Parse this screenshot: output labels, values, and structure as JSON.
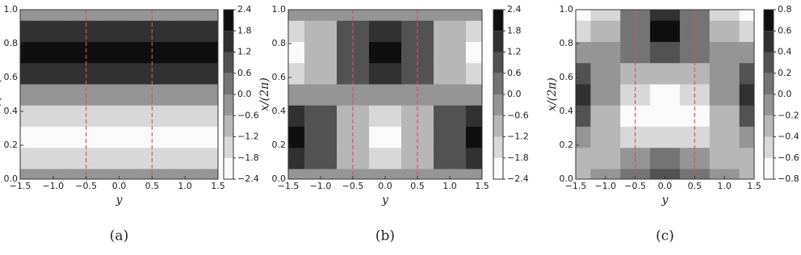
{
  "chart_data": [
    {
      "type": "contour",
      "caption": "(a)",
      "xlabel": "y",
      "ylabel": "x/(2π)",
      "xlim": [
        -1.5,
        1.5
      ],
      "ylim": [
        0,
        1
      ],
      "xticks": [
        {
          "value": -1.5,
          "label": "−1.5"
        },
        {
          "value": -1,
          "label": "−1.0"
        },
        {
          "value": -0.5,
          "label": "−0.5"
        },
        {
          "value": 0,
          "label": "0.0"
        },
        {
          "value": 0.5,
          "label": "0.5"
        },
        {
          "value": 1,
          "label": "1.0"
        },
        {
          "value": 1.5,
          "label": "1.5"
        }
      ],
      "yticks": [
        {
          "value": 0,
          "label": "0.0"
        },
        {
          "value": 0.2,
          "label": "0.2"
        },
        {
          "value": 0.4,
          "label": "0.4"
        },
        {
          "value": 0.6,
          "label": "0.6"
        },
        {
          "value": 0.8,
          "label": "0.8"
        },
        {
          "value": 1,
          "label": "1.0"
        }
      ],
      "levels": [
        {
          "value": -2.4,
          "label": "−2.4"
        },
        {
          "value": -1.8,
          "label": "−1.8"
        },
        {
          "value": -1.2,
          "label": "−1.2"
        },
        {
          "value": -0.6,
          "label": "−0.6"
        },
        {
          "value": 0,
          "label": "0.0"
        },
        {
          "value": 0.6,
          "label": "0.6"
        },
        {
          "value": 1.2,
          "label": "1.2"
        },
        {
          "value": 1.8,
          "label": "1.8"
        },
        {
          "value": 2.4,
          "label": "2.4"
        }
      ],
      "vlines": [
        -0.5,
        0.5
      ],
      "vline_color": "#d9534f",
      "x": [
        -1.5,
        -1,
        -0.5,
        0,
        0.5,
        1,
        1.5
      ],
      "y": [
        0,
        0.125,
        0.25,
        0.375,
        0.5,
        0.625,
        0.75,
        0.875,
        1
      ],
      "z": [
        [
          0,
          0,
          0,
          0,
          0,
          0,
          0
        ],
        [
          -1.4,
          -1.5,
          -1.6,
          -1.7,
          -1.6,
          -1.5,
          -1.4
        ],
        [
          -2.0,
          -2.1,
          -2.25,
          -2.4,
          -2.25,
          -2.1,
          -2.0
        ],
        [
          -1.4,
          -1.5,
          -1.6,
          -1.7,
          -1.6,
          -1.5,
          -1.4
        ],
        [
          0,
          0,
          0,
          0,
          0,
          0,
          0
        ],
        [
          1.4,
          1.5,
          1.6,
          1.7,
          1.6,
          1.5,
          1.4
        ],
        [
          2.0,
          2.1,
          2.25,
          2.4,
          2.25,
          2.1,
          2.0
        ],
        [
          1.4,
          1.5,
          1.6,
          1.7,
          1.6,
          1.5,
          1.4
        ],
        [
          0,
          0,
          0,
          0,
          0,
          0,
          0
        ]
      ]
    },
    {
      "type": "contour",
      "caption": "(b)",
      "xlabel": "y",
      "ylabel": "x/(2π)",
      "xlim": [
        -1.5,
        1.5
      ],
      "ylim": [
        0,
        1
      ],
      "xticks": [
        {
          "value": -1.5,
          "label": "−1.5"
        },
        {
          "value": -1,
          "label": "−1.0"
        },
        {
          "value": -0.5,
          "label": "−0.5"
        },
        {
          "value": 0,
          "label": "0.0"
        },
        {
          "value": 0.5,
          "label": "0.5"
        },
        {
          "value": 1,
          "label": "1.0"
        },
        {
          "value": 1.5,
          "label": "1.5"
        }
      ],
      "yticks": [
        {
          "value": 0,
          "label": "0.0"
        },
        {
          "value": 0.2,
          "label": "0.2"
        },
        {
          "value": 0.4,
          "label": "0.4"
        },
        {
          "value": 0.6,
          "label": "0.6"
        },
        {
          "value": 0.8,
          "label": "0.8"
        },
        {
          "value": 1,
          "label": "1.0"
        }
      ],
      "levels": [
        {
          "value": -2.4,
          "label": "−2.4"
        },
        {
          "value": -1.8,
          "label": "−1.8"
        },
        {
          "value": -1.2,
          "label": "−1.2"
        },
        {
          "value": -0.6,
          "label": "−0.6"
        },
        {
          "value": 0,
          "label": "0.0"
        },
        {
          "value": 0.6,
          "label": "0.6"
        },
        {
          "value": 1.2,
          "label": "1.2"
        },
        {
          "value": 1.8,
          "label": "1.8"
        },
        {
          "value": 2.4,
          "label": "2.4"
        }
      ],
      "vlines": [
        -0.5,
        0.5
      ],
      "vline_color": "#d9534f",
      "x": [
        -1.5,
        -1,
        -0.5,
        0,
        0.5,
        1,
        1.5
      ],
      "y": [
        0,
        0.125,
        0.25,
        0.375,
        0.5,
        0.625,
        0.75,
        0.875,
        1
      ],
      "z": [
        [
          0,
          0,
          0,
          0,
          0,
          0,
          0
        ],
        [
          1.6,
          0.8,
          -0.8,
          -1.6,
          -0.8,
          0.8,
          1.6
        ],
        [
          2.3,
          1.15,
          -1.15,
          -2.3,
          -1.15,
          1.15,
          2.3
        ],
        [
          1.6,
          0.8,
          -0.8,
          -1.6,
          -0.8,
          0.8,
          1.6
        ],
        [
          0,
          0,
          0,
          0,
          0,
          0,
          0
        ],
        [
          -1.6,
          -0.8,
          0.8,
          1.6,
          0.8,
          -0.8,
          -1.6
        ],
        [
          -2.3,
          -1.15,
          1.15,
          2.3,
          1.15,
          -1.15,
          -2.3
        ],
        [
          -1.6,
          -0.8,
          0.8,
          1.6,
          0.8,
          -0.8,
          -1.6
        ],
        [
          0,
          0,
          0,
          0,
          0,
          0,
          0
        ]
      ]
    },
    {
      "type": "contour",
      "caption": "(c)",
      "xlabel": "y",
      "ylabel": "x/(2π)",
      "xlim": [
        -1.5,
        1.5
      ],
      "ylim": [
        0,
        1
      ],
      "xticks": [
        {
          "value": -1.5,
          "label": "−1.5"
        },
        {
          "value": -1,
          "label": "−1.0"
        },
        {
          "value": -0.5,
          "label": "−0.5"
        },
        {
          "value": 0,
          "label": "0.0"
        },
        {
          "value": 0.5,
          "label": "0.5"
        },
        {
          "value": 1,
          "label": "1.0"
        },
        {
          "value": 1.5,
          "label": "1.5"
        }
      ],
      "yticks": [
        {
          "value": 0,
          "label": "0.0"
        },
        {
          "value": 0.2,
          "label": "0.2"
        },
        {
          "value": 0.4,
          "label": "0.4"
        },
        {
          "value": 0.6,
          "label": "0.6"
        },
        {
          "value": 0.8,
          "label": "0.8"
        },
        {
          "value": 1,
          "label": "1.0"
        }
      ],
      "levels": [
        {
          "value": -0.8,
          "label": "−0.8"
        },
        {
          "value": -0.6,
          "label": "−0.6"
        },
        {
          "value": -0.4,
          "label": "−0.4"
        },
        {
          "value": -0.2,
          "label": "−0.2"
        },
        {
          "value": 0,
          "label": "0.0"
        },
        {
          "value": 0.2,
          "label": "0.2"
        },
        {
          "value": 0.4,
          "label": "0.4"
        },
        {
          "value": 0.6,
          "label": "0.6"
        },
        {
          "value": 0.8,
          "label": "0.8"
        }
      ],
      "vlines": [
        -0.5,
        0.5
      ],
      "vline_color": "#d9534f",
      "x": [
        -1.5,
        -1,
        -0.5,
        0,
        0.5,
        1,
        1.5
      ],
      "y": [
        0,
        0.125,
        0.25,
        0.375,
        0.5,
        0.625,
        0.75,
        0.875,
        1
      ],
      "z": [
        [
          -0.3,
          -0.1,
          0.2,
          0.3,
          0.2,
          -0.1,
          -0.3
        ],
        [
          -0.2,
          -0.2,
          0.0,
          0.1,
          0.0,
          -0.2,
          -0.2
        ],
        [
          0.0,
          -0.3,
          -0.4,
          -0.5,
          -0.4,
          -0.3,
          0.0
        ],
        [
          0.3,
          -0.2,
          -0.6,
          -0.75,
          -0.6,
          -0.2,
          0.3
        ],
        [
          0.5,
          0.0,
          -0.5,
          -0.6,
          -0.5,
          0.0,
          0.5
        ],
        [
          0.3,
          0.0,
          -0.2,
          -0.3,
          -0.2,
          0.0,
          0.3
        ],
        [
          0.0,
          -0.1,
          0.1,
          0.3,
          0.1,
          -0.1,
          0.0
        ],
        [
          -0.4,
          -0.3,
          0.2,
          0.7,
          0.2,
          -0.3,
          -0.4
        ],
        [
          -0.6,
          -0.4,
          0.1,
          0.6,
          0.1,
          -0.4,
          -0.6
        ]
      ]
    }
  ]
}
